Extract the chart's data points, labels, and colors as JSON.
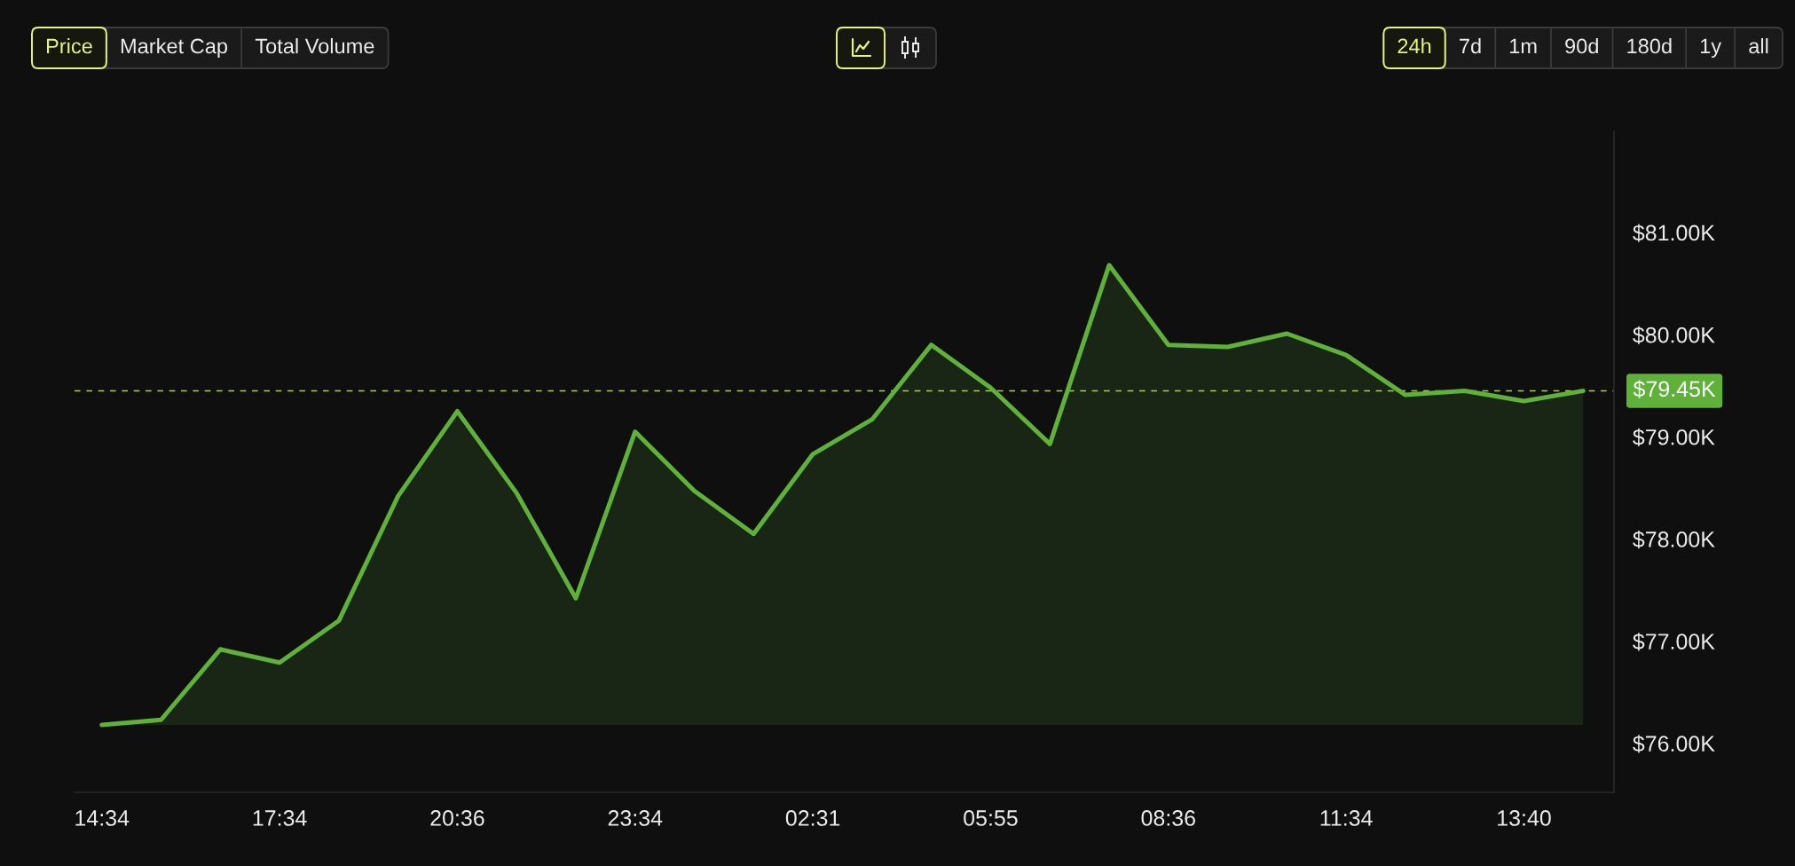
{
  "chart_data": {
    "type": "area",
    "categories": [
      "14:34",
      null,
      null,
      "17:34",
      null,
      null,
      "20:36",
      null,
      null,
      "23:34",
      null,
      null,
      "02:31",
      null,
      null,
      "05:55",
      null,
      null,
      "08:36",
      null,
      null,
      "11:34",
      null,
      null,
      "13:40",
      null
    ],
    "series": [
      {
        "color": "#5fb13a",
        "values": [
          76180,
          76230,
          76920,
          76790,
          77200,
          78420,
          79250,
          78450,
          77420,
          79050,
          78470,
          78050,
          78830,
          79170,
          79900,
          79480,
          78930,
          80680,
          79900,
          79880,
          80010,
          79800,
          79410,
          79450,
          79350,
          79450
        ]
      }
    ],
    "ylim": [
      75520,
      81990
    ],
    "yticks": [
      {
        "value": 76000,
        "label": "$76.00K"
      },
      {
        "value": 77000,
        "label": "$77.00K"
      },
      {
        "value": 78000,
        "label": "$78.00K"
      },
      {
        "value": 79000,
        "label": "$79.00K"
      },
      {
        "value": 80000,
        "label": "$80.00K"
      },
      {
        "value": 81000,
        "label": "$81.00K"
      }
    ],
    "ref_lines": [
      {
        "axis": "y",
        "value": 79450,
        "label": "$79.45K",
        "color": "#a8cd62",
        "line_style": "dashed"
      }
    ],
    "annotations": [
      "Price",
      "Market Cap",
      "Total Volume",
      "24h",
      "7d",
      "1m",
      "90d",
      "180d",
      "1y",
      "all"
    ]
  }
}
